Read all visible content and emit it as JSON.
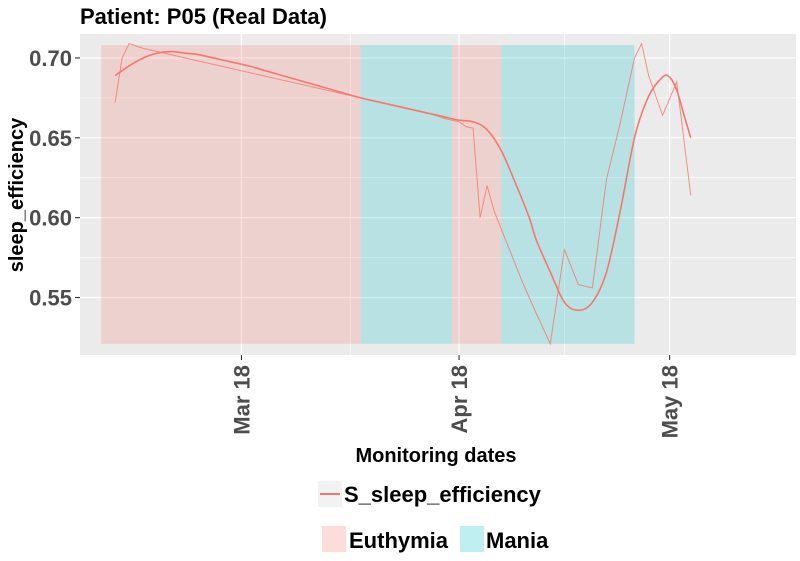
{
  "chart_data": {
    "type": "line",
    "title": "Patient: P05 (Real Data)",
    "xlabel": "Monitoring dates",
    "ylabel": "sleep_efficiency",
    "xlim": [
      "2018-02-06",
      "2018-05-19"
    ],
    "ylim": [
      0.514,
      0.715
    ],
    "yticks": [
      0.55,
      0.6,
      0.65,
      0.7
    ],
    "ytick_labels": [
      "0.55",
      "0.60",
      "0.65",
      "0.70"
    ],
    "xticks": [
      "2018-03-01",
      "2018-04-01",
      "2018-05-01"
    ],
    "xtick_labels": [
      "Mar 18",
      "Apr 18",
      "May 18"
    ],
    "grid": true,
    "legend_position": "bottom",
    "regions": [
      {
        "name": "Euthymia",
        "start": "2018-02-09",
        "end": "2018-03-18",
        "color": "#F8766D"
      },
      {
        "name": "Mania",
        "start": "2018-03-18",
        "end": "2018-03-31",
        "color": "#00BFC4"
      },
      {
        "name": "Euthymia",
        "start": "2018-03-31",
        "end": "2018-04-07",
        "color": "#F8766D"
      },
      {
        "name": "Mania",
        "start": "2018-04-07",
        "end": "2018-04-26",
        "color": "#00BFC4"
      }
    ],
    "regions_ylim": [
      0.521,
      0.708
    ],
    "series": [
      {
        "name": "S_sleep_efficiency",
        "color": "#F8766D",
        "smooth": {
          "x": [
            "2018-02-11",
            "2018-02-13",
            "2018-02-15",
            "2018-02-17",
            "2018-02-19",
            "2018-02-21",
            "2018-02-23",
            "2018-02-26",
            "2018-03-02",
            "2018-03-06",
            "2018-03-10",
            "2018-03-14",
            "2018-03-18",
            "2018-03-22",
            "2018-03-26",
            "2018-03-28",
            "2018-03-30",
            "2018-04-01",
            "2018-04-03",
            "2018-04-05",
            "2018-04-07",
            "2018-04-09",
            "2018-04-11",
            "2018-04-12",
            "2018-04-14",
            "2018-04-16",
            "2018-04-18",
            "2018-04-20",
            "2018-04-22",
            "2018-04-24",
            "2018-04-26",
            "2018-04-28",
            "2018-04-30",
            "2018-05-01",
            "2018-05-02",
            "2018-05-03",
            "2018-05-04"
          ],
          "y": [
            0.689,
            0.695,
            0.7,
            0.703,
            0.704,
            0.703,
            0.702,
            0.699,
            0.695,
            0.69,
            0.685,
            0.68,
            0.675,
            0.671,
            0.667,
            0.665,
            0.663,
            0.661,
            0.66,
            0.655,
            0.642,
            0.622,
            0.6,
            0.586,
            0.566,
            0.547,
            0.542,
            0.547,
            0.566,
            0.605,
            0.65,
            0.676,
            0.688,
            0.688,
            0.68,
            0.665,
            0.65
          ]
        },
        "raw": {
          "x": [
            "2018-02-11",
            "2018-02-12",
            "2018-02-13",
            "2018-02-15",
            "2018-03-28",
            "2018-03-30",
            "2018-04-01",
            "2018-04-02",
            "2018-04-03",
            "2018-04-04",
            "2018-04-05",
            "2018-04-06",
            "2018-04-08",
            "2018-04-10",
            "2018-04-12",
            "2018-04-14",
            "2018-04-16",
            "2018-04-18",
            "2018-04-20",
            "2018-04-22",
            "2018-04-24",
            "2018-04-26",
            "2018-04-27",
            "2018-04-28",
            "2018-04-30",
            "2018-05-02",
            "2018-05-03",
            "2018-05-04"
          ],
          "y": [
            0.672,
            0.7,
            0.709,
            0.706,
            0.665,
            0.662,
            0.66,
            0.657,
            0.656,
            0.6,
            0.62,
            0.604,
            0.582,
            0.56,
            0.54,
            0.521,
            0.58,
            0.558,
            0.556,
            0.624,
            0.66,
            0.7,
            0.709,
            0.689,
            0.664,
            0.685,
            0.65,
            0.614
          ]
        }
      }
    ],
    "legend": {
      "line_entry": "S_sleep_efficiency",
      "fill_entries": [
        {
          "name": "Euthymia",
          "color": "#F8766D"
        },
        {
          "name": "Mania",
          "color": "#00BFC4"
        }
      ]
    }
  }
}
